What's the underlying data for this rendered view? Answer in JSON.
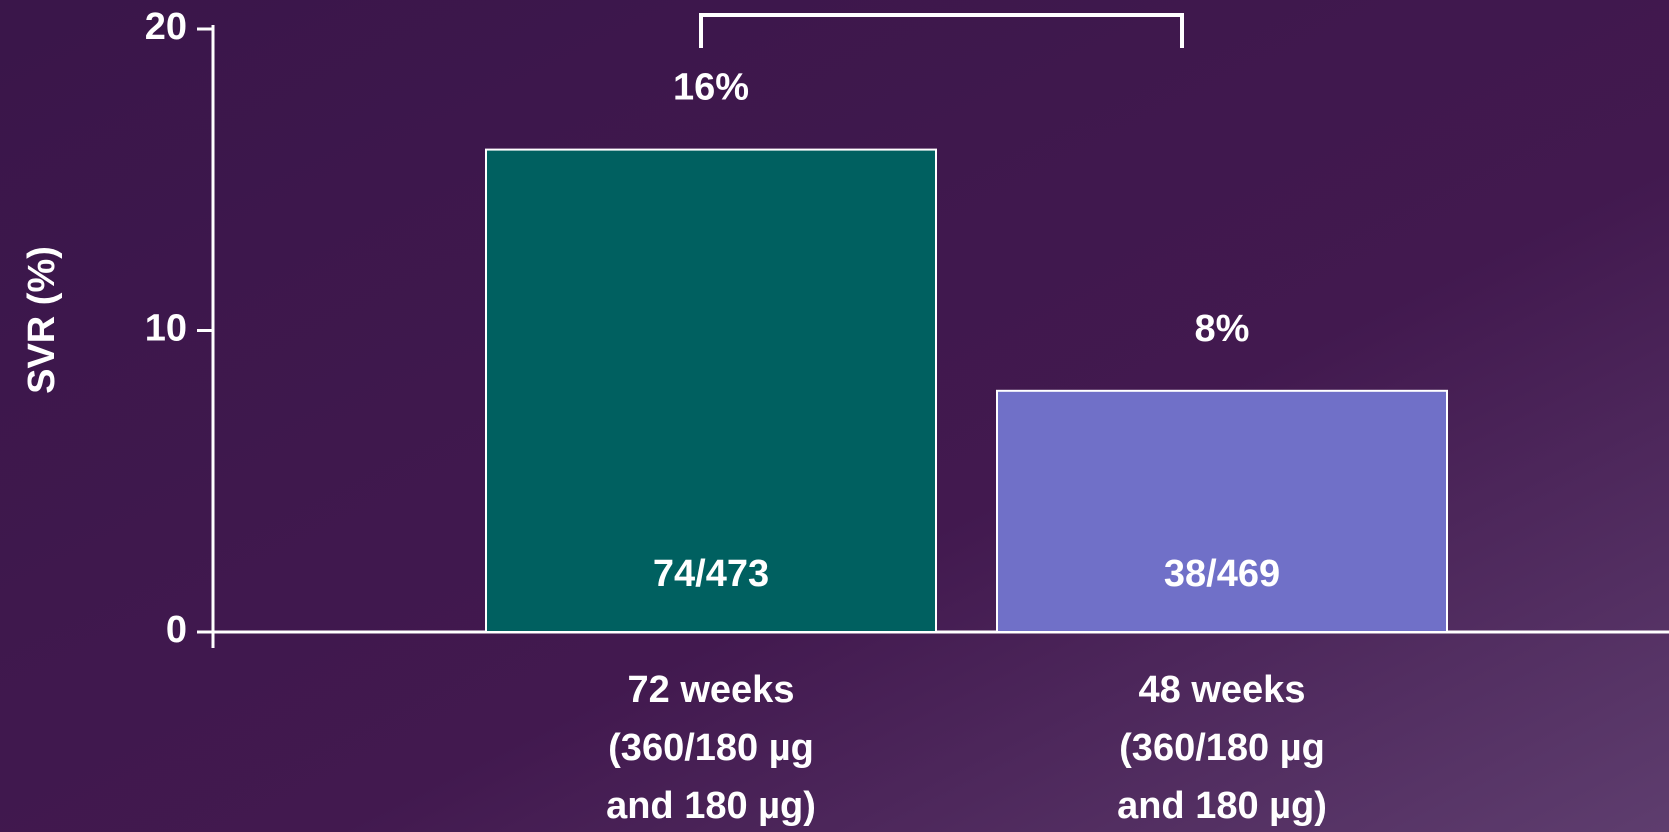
{
  "chart_data": {
    "type": "bar",
    "y_label": "SVR (%)",
    "categories": [
      [
        "72 weeks",
        "(360/180 µg",
        "and 180 µg)"
      ],
      [
        "48 weeks",
        "(360/180 µg",
        "and 180 µg)"
      ]
    ],
    "values": [
      16,
      8
    ],
    "value_labels": [
      "16%",
      "8%"
    ],
    "inner_labels": [
      "74/473",
      "38/469"
    ],
    "colors": [
      "#006060",
      "#7070c8"
    ],
    "ylim": [
      0,
      20
    ],
    "yticks": [
      0,
      10,
      20
    ]
  }
}
